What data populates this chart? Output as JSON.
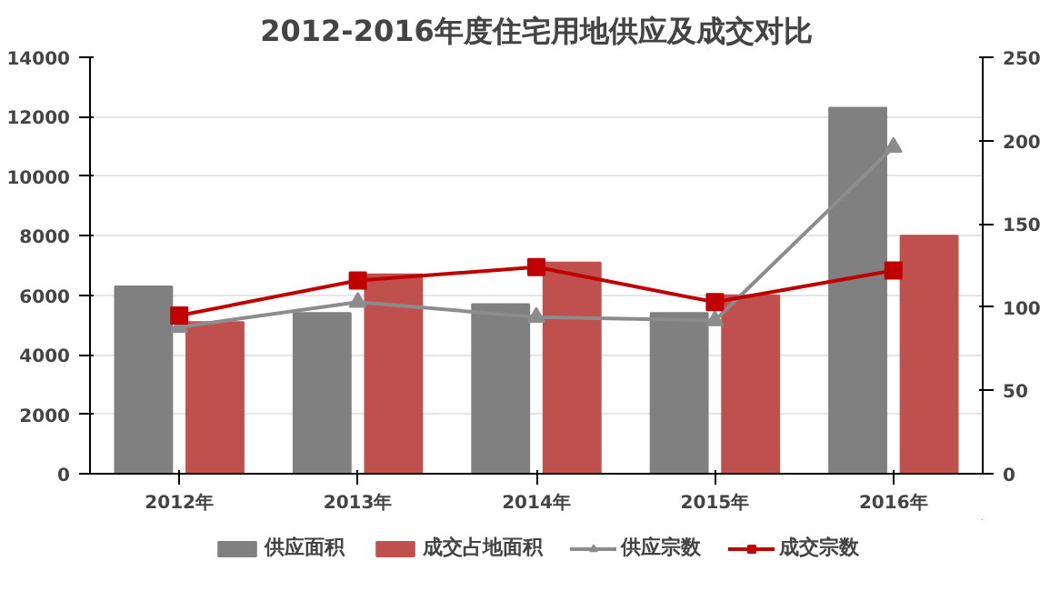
{
  "chart_data": {
    "type": "bar",
    "title": "2012-2016年度住宅用地供应及成交对比",
    "categories": [
      "2012年",
      "2013年",
      "2014年",
      "2015年",
      "2016年"
    ],
    "series": [
      {
        "name": "供应面积",
        "color": "#808080",
        "values": [
          6300,
          5400,
          5700,
          5400,
          12300
        ]
      },
      {
        "name": "成交占地面积",
        "color": "#c0504d",
        "values": [
          5100,
          6700,
          7100,
          6000,
          8000
        ]
      },
      {
        "name": "供应宗数",
        "type": "line",
        "axis": "y2",
        "marker": "triangle",
        "color": "#8c8c8c",
        "values": [
          88,
          103,
          94,
          92,
          196
        ]
      },
      {
        "name": "成交宗数",
        "type": "line",
        "axis": "y2",
        "marker": "square",
        "color": "#c00000",
        "values": [
          95,
          116,
          124,
          103,
          122
        ]
      }
    ],
    "ylim": [
      0,
      14000
    ],
    "yticks": [
      0,
      2000,
      4000,
      6000,
      8000,
      10000,
      12000,
      14000
    ],
    "y2lim": [
      0,
      250
    ],
    "y2ticks": [
      0,
      50,
      100,
      150,
      200,
      250
    ],
    "grid": "y",
    "legend": "bottom"
  }
}
